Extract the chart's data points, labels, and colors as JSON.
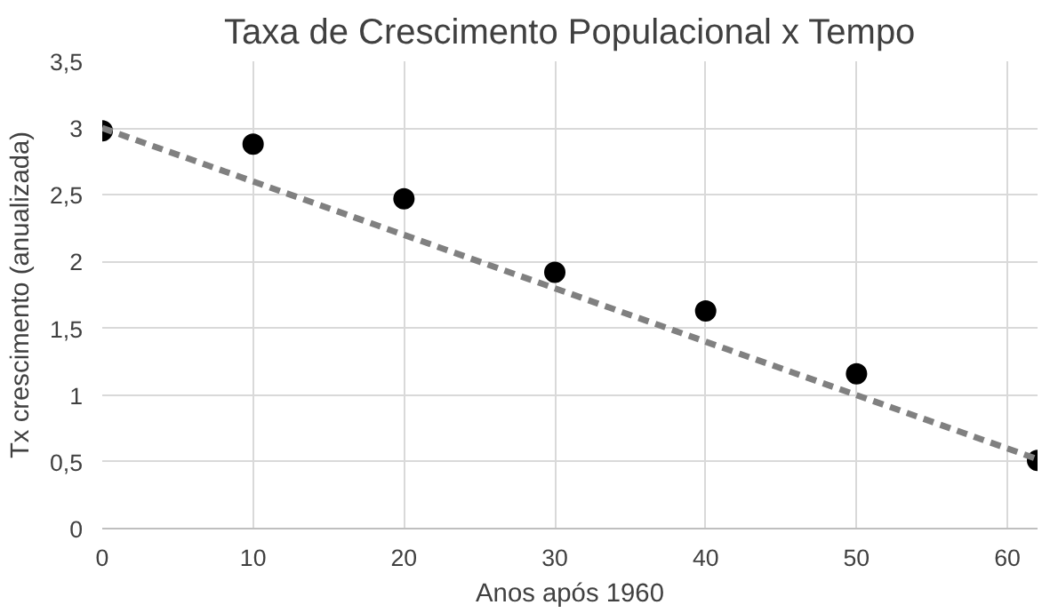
{
  "chart_data": {
    "type": "scatter",
    "title": "Taxa de Crescimento Populacional x Tempo",
    "xlabel": "Anos após 1960",
    "ylabel": "Tx crescimento (anualizada)",
    "xlim": [
      0,
      62
    ],
    "ylim": [
      0,
      3.5
    ],
    "xticks": [
      0,
      10,
      20,
      30,
      40,
      50,
      60
    ],
    "yticks": [
      0,
      {
        "value": 0.5,
        "label": "0,5"
      },
      1,
      {
        "value": 1.5,
        "label": "1,5"
      },
      2,
      {
        "value": 2.5,
        "label": "2,5"
      },
      3,
      {
        "value": 3.5,
        "label": "3,5"
      }
    ],
    "grid": true,
    "marker": "circle",
    "series": [
      {
        "color": "#000000",
        "x": [
          0,
          10,
          20,
          30,
          40,
          50,
          62
        ],
        "values": [
          2.98,
          2.88,
          2.47,
          1.92,
          1.63,
          1.16,
          0.51
        ]
      },
      {
        "type": "line",
        "color": "#808080",
        "line_style": "dashed",
        "marker": "none",
        "x": [
          0,
          62
        ],
        "values": [
          3.0,
          0.52
        ]
      }
    ]
  }
}
